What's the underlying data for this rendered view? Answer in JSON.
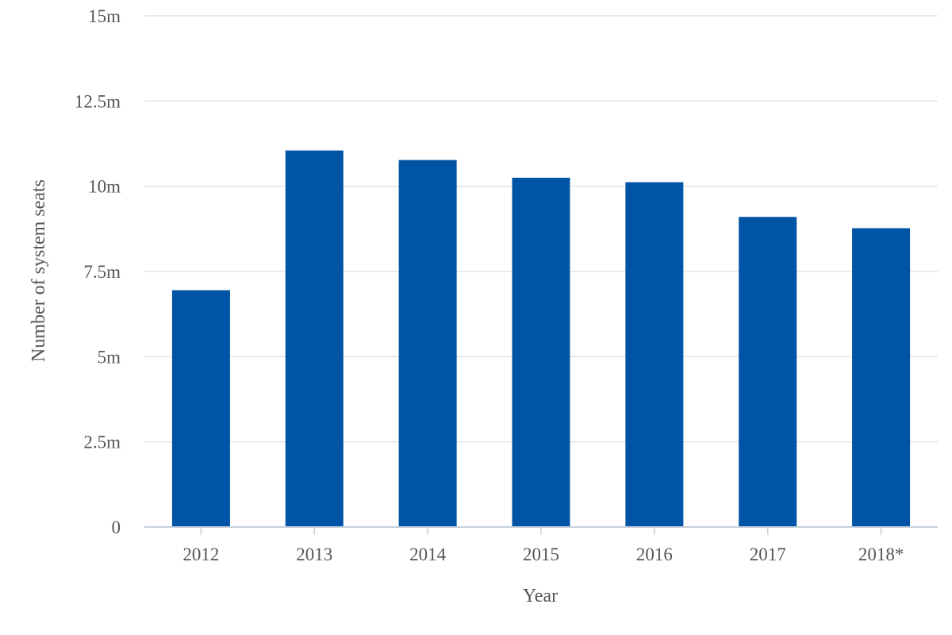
{
  "chart_data": {
    "type": "bar",
    "categories": [
      "2012",
      "2013",
      "2014",
      "2015",
      "2016",
      "2017",
      "2018*"
    ],
    "values": [
      6.95,
      11.05,
      10.77,
      10.25,
      10.12,
      9.1,
      8.77
    ],
    "unit": "m",
    "xlabel": "Year",
    "ylabel": "Number of system seats",
    "ylim": [
      0,
      15
    ],
    "yticks": [
      0,
      2.5,
      5,
      7.5,
      10,
      12.5,
      15
    ],
    "ytick_labels": [
      "0",
      "2.5m",
      "5m",
      "7.5m",
      "10m",
      "12.5m",
      "15m"
    ],
    "grid": true,
    "legend": "none",
    "bar_color": "#0054a6"
  }
}
